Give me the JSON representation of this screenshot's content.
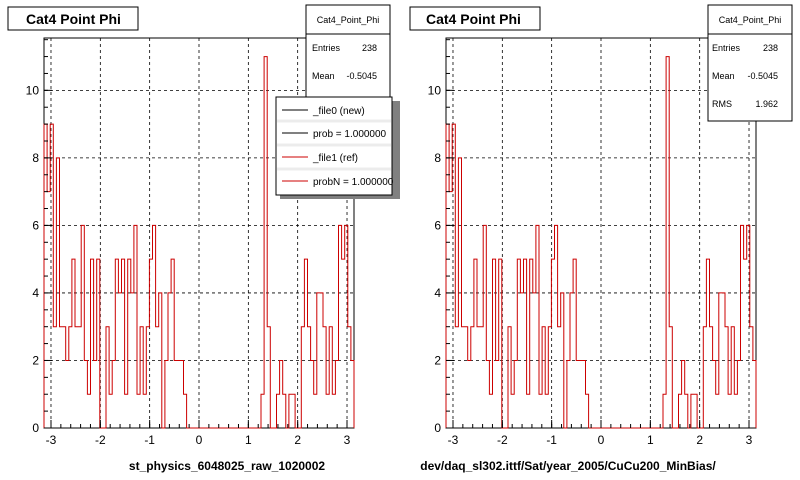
{
  "colors": {
    "hist": "#cc0000",
    "frame": "#000000",
    "grid": "#000000",
    "legend_new": "#000000",
    "legend_ref": "#cc0000"
  },
  "panels": [
    {
      "title": "Cat4 Point Phi",
      "xlabel": "st_physics_6048025_raw_1020002",
      "stats": {
        "name": "Cat4_Point_Phi",
        "rows": [
          {
            "label": "Entries",
            "value": "238"
          },
          {
            "label": "Mean",
            "value": "-0.5045"
          }
        ]
      },
      "legend": [
        {
          "label": "_file0 (new)",
          "color": "#000000"
        },
        {
          "label": "prob = 1.000000",
          "color": "#000000"
        },
        {
          "label": "_file1 (ref)",
          "color": "#cc0000"
        },
        {
          "label": "probN = 1.000000",
          "color": "#cc0000"
        }
      ]
    },
    {
      "title": "Cat4 Point Phi",
      "xlabel": "dev/daq_sl302.ittf/Sat/year_2005/CuCu200_MinBias/",
      "stats": {
        "name": "Cat4_Point_Phi",
        "rows": [
          {
            "label": "Entries",
            "value": "238"
          },
          {
            "label": "Mean",
            "value": "-0.5045"
          },
          {
            "label": "RMS",
            "value": "1.962"
          }
        ]
      }
    }
  ],
  "chart_data": {
    "type": "histogram",
    "title": "Cat4 Point Phi",
    "xlim": [
      -3.1416,
      3.1416
    ],
    "ylim": [
      0,
      11.55
    ],
    "xticks": [
      -3,
      -2,
      -1,
      0,
      1,
      2,
      3
    ],
    "yticks": [
      0,
      2,
      4,
      6,
      8,
      10
    ],
    "grid": true,
    "bins": 100,
    "counts": [
      9,
      7,
      9,
      3,
      8,
      3,
      3,
      2,
      3,
      5,
      3,
      3,
      6,
      2,
      1,
      5,
      2,
      5,
      0,
      0,
      3,
      1,
      2,
      5,
      4,
      5,
      1,
      5,
      4,
      6,
      1,
      3,
      1,
      3,
      5,
      6,
      3,
      4,
      0,
      2,
      4,
      5,
      2,
      2,
      2,
      1,
      0,
      0,
      0,
      0,
      0,
      0,
      0,
      0,
      0,
      0,
      0,
      0,
      0,
      0,
      0,
      0,
      0,
      0,
      0,
      0,
      0,
      0,
      0,
      0,
      1,
      11,
      3,
      0,
      0,
      1,
      2,
      1,
      0,
      1,
      1,
      0,
      0,
      3,
      5,
      3,
      2,
      1,
      4,
      4,
      3,
      1,
      3,
      1,
      2,
      6,
      5,
      6,
      3,
      2
    ],
    "series": [
      {
        "name": "_file1 (ref)",
        "color": "#cc0000"
      }
    ],
    "stats": {
      "Entries": 238,
      "Mean": -0.5045,
      "RMS": 1.962
    }
  }
}
